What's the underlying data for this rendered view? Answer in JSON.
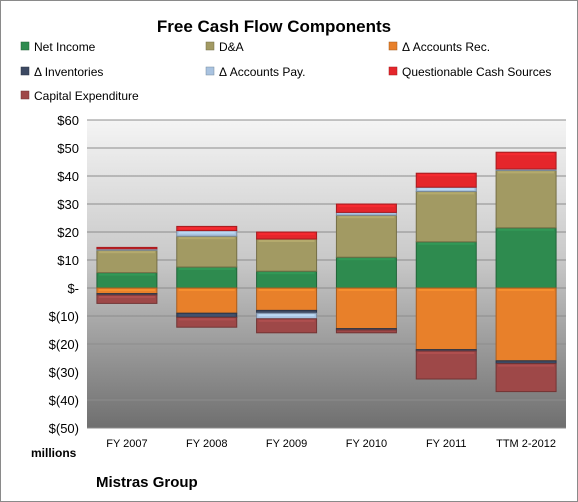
{
  "chart_data": {
    "type": "bar",
    "stacked": true,
    "title": "Free Cash Flow Components",
    "units_label": "millions",
    "company": "Mistras Group",
    "categories": [
      "FY 2007",
      "FY 2008",
      "FY 2009",
      "FY 2010",
      "FY 2011",
      "TTM 2-2012"
    ],
    "ylim": [
      -50,
      60
    ],
    "yticks": [
      60,
      50,
      40,
      30,
      20,
      10,
      0,
      -10,
      -20,
      -30,
      -40,
      -50
    ],
    "ytick_labels": [
      "$60",
      "$50",
      "$40",
      "$30",
      "$20",
      "$10",
      "$-",
      "$(10)",
      "$(20)",
      "$(30)",
      "$(40)",
      "$(50)"
    ],
    "grid": true,
    "legend_position": "top",
    "series": [
      {
        "name": "Net Income",
        "color": "#2e8b4f",
        "values": [
          5.5,
          7.5,
          6,
          11,
          16.5,
          21.5
        ]
      },
      {
        "name": "D&A",
        "color": "#a29a63",
        "values": [
          8,
          11,
          11.5,
          15,
          18,
          20.5
        ]
      },
      {
        "name": "Δ Accounts Rec.",
        "color": "#e8802a",
        "values": [
          -2,
          -9,
          -8,
          -14.5,
          -22,
          -26
        ]
      },
      {
        "name": "Δ Inventories",
        "color": "#3d4a63",
        "values": [
          -0.5,
          -1.5,
          -1,
          -0.5,
          -0.5,
          -1
        ]
      },
      {
        "name": "Δ Accounts Pay.",
        "color": "#a9c3e0",
        "values": [
          0.5,
          2,
          -2,
          1,
          1.5,
          0.5
        ]
      },
      {
        "name": "Questionable Cash Sources",
        "color": "#e5262b",
        "values": [
          0.5,
          1.5,
          2.5,
          3,
          5,
          6
        ]
      },
      {
        "name": "Capital Expenditure",
        "color": "#9e4848",
        "values": [
          -3,
          -3.5,
          -5,
          -1,
          -10,
          -10
        ]
      }
    ]
  }
}
